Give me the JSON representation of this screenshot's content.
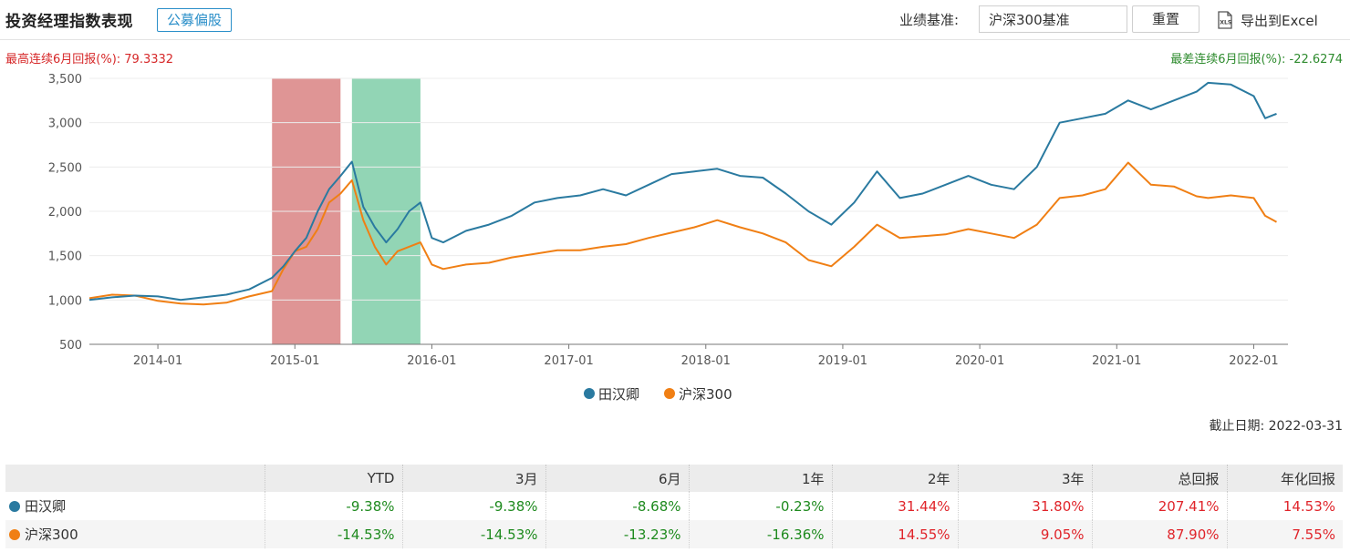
{
  "header": {
    "title": "投资经理指数表现",
    "type_badge": "公募偏股",
    "benchmark_label": "业绩基准:",
    "benchmark_value": "沪深300基准",
    "reset_label": "重置",
    "export_label": "导出到Excel",
    "export_icon": "xls-file-icon"
  },
  "stats": {
    "best_6m": "最高连续6月回报(%):  79.3332",
    "worst_6m": "最差连续6月回报(%):  -22.6274"
  },
  "as_of": "截止日期:  2022-03-31",
  "colors": {
    "manager": "#2a7aa0",
    "benchmark": "#f07f14",
    "best_band": "#d98282",
    "worst_band": "#7fcea8",
    "positive": "#e0242a",
    "negative": "#1e8a1e"
  },
  "chart_data": {
    "type": "line",
    "x_ticks": [
      "2014-01",
      "2015-01",
      "2016-01",
      "2017-01",
      "2018-01",
      "2019-01",
      "2020-01",
      "2021-01",
      "2022-01"
    ],
    "x_range": [
      "2013-07",
      "2022-03-31"
    ],
    "ylim": [
      500,
      3500
    ],
    "y_ticks": [
      "500",
      "1,000",
      "1,500",
      "2,000",
      "2,500",
      "3,000",
      "3,500"
    ],
    "grid": "horizontal",
    "legend_position": "bottom",
    "highlight_bands": [
      {
        "label": "best 6m",
        "start": "2014-11",
        "end": "2015-05"
      },
      {
        "label": "worst 6m",
        "start": "2015-06",
        "end": "2015-12"
      }
    ],
    "series": [
      {
        "name": "田汉卿",
        "points": [
          [
            "2013-07",
            1000
          ],
          [
            "2013-09",
            1030
          ],
          [
            "2013-11",
            1050
          ],
          [
            "2014-01",
            1040
          ],
          [
            "2014-03",
            1000
          ],
          [
            "2014-05",
            1030
          ],
          [
            "2014-07",
            1060
          ],
          [
            "2014-09",
            1120
          ],
          [
            "2014-11",
            1250
          ],
          [
            "2014-12",
            1380
          ],
          [
            "2015-01",
            1550
          ],
          [
            "2015-02",
            1700
          ],
          [
            "2015-03",
            2000
          ],
          [
            "2015-04",
            2250
          ],
          [
            "2015-05",
            2400
          ],
          [
            "2015-06",
            2560
          ],
          [
            "2015-07",
            2050
          ],
          [
            "2015-08",
            1820
          ],
          [
            "2015-09",
            1650
          ],
          [
            "2015-10",
            1800
          ],
          [
            "2015-11",
            2000
          ],
          [
            "2015-12",
            2100
          ],
          [
            "2016-01",
            1700
          ],
          [
            "2016-02",
            1650
          ],
          [
            "2016-04",
            1780
          ],
          [
            "2016-06",
            1850
          ],
          [
            "2016-08",
            1950
          ],
          [
            "2016-10",
            2100
          ],
          [
            "2016-12",
            2150
          ],
          [
            "2017-02",
            2180
          ],
          [
            "2017-04",
            2250
          ],
          [
            "2017-06",
            2180
          ],
          [
            "2017-08",
            2300
          ],
          [
            "2017-10",
            2420
          ],
          [
            "2017-12",
            2450
          ],
          [
            "2018-02",
            2480
          ],
          [
            "2018-04",
            2400
          ],
          [
            "2018-06",
            2380
          ],
          [
            "2018-08",
            2200
          ],
          [
            "2018-10",
            2000
          ],
          [
            "2018-12",
            1850
          ],
          [
            "2019-02",
            2100
          ],
          [
            "2019-04",
            2450
          ],
          [
            "2019-06",
            2150
          ],
          [
            "2019-08",
            2200
          ],
          [
            "2019-10",
            2300
          ],
          [
            "2019-12",
            2400
          ],
          [
            "2020-02",
            2300
          ],
          [
            "2020-04",
            2250
          ],
          [
            "2020-06",
            2500
          ],
          [
            "2020-08",
            3000
          ],
          [
            "2020-10",
            3050
          ],
          [
            "2020-12",
            3100
          ],
          [
            "2021-02",
            3250
          ],
          [
            "2021-04",
            3150
          ],
          [
            "2021-06",
            3250
          ],
          [
            "2021-08",
            3350
          ],
          [
            "2021-09",
            3450
          ],
          [
            "2021-11",
            3430
          ],
          [
            "2022-01",
            3300
          ],
          [
            "2022-02",
            3050
          ],
          [
            "2022-03",
            3100
          ]
        ]
      },
      {
        "name": "沪深300",
        "points": [
          [
            "2013-07",
            1020
          ],
          [
            "2013-09",
            1060
          ],
          [
            "2013-11",
            1050
          ],
          [
            "2014-01",
            990
          ],
          [
            "2014-03",
            960
          ],
          [
            "2014-05",
            950
          ],
          [
            "2014-07",
            970
          ],
          [
            "2014-09",
            1040
          ],
          [
            "2014-11",
            1100
          ],
          [
            "2014-12",
            1350
          ],
          [
            "2015-01",
            1550
          ],
          [
            "2015-02",
            1600
          ],
          [
            "2015-03",
            1800
          ],
          [
            "2015-04",
            2100
          ],
          [
            "2015-05",
            2200
          ],
          [
            "2015-06",
            2350
          ],
          [
            "2015-07",
            1900
          ],
          [
            "2015-08",
            1600
          ],
          [
            "2015-09",
            1400
          ],
          [
            "2015-10",
            1550
          ],
          [
            "2015-11",
            1600
          ],
          [
            "2015-12",
            1650
          ],
          [
            "2016-01",
            1400
          ],
          [
            "2016-02",
            1350
          ],
          [
            "2016-04",
            1400
          ],
          [
            "2016-06",
            1420
          ],
          [
            "2016-08",
            1480
          ],
          [
            "2016-10",
            1520
          ],
          [
            "2016-12",
            1560
          ],
          [
            "2017-02",
            1560
          ],
          [
            "2017-04",
            1600
          ],
          [
            "2017-06",
            1630
          ],
          [
            "2017-08",
            1700
          ],
          [
            "2017-10",
            1760
          ],
          [
            "2017-12",
            1820
          ],
          [
            "2018-02",
            1900
          ],
          [
            "2018-04",
            1820
          ],
          [
            "2018-06",
            1750
          ],
          [
            "2018-08",
            1650
          ],
          [
            "2018-10",
            1450
          ],
          [
            "2018-12",
            1380
          ],
          [
            "2019-02",
            1600
          ],
          [
            "2019-04",
            1850
          ],
          [
            "2019-06",
            1700
          ],
          [
            "2019-08",
            1720
          ],
          [
            "2019-10",
            1740
          ],
          [
            "2019-12",
            1800
          ],
          [
            "2020-02",
            1750
          ],
          [
            "2020-04",
            1700
          ],
          [
            "2020-06",
            1850
          ],
          [
            "2020-08",
            2150
          ],
          [
            "2020-10",
            2180
          ],
          [
            "2020-12",
            2250
          ],
          [
            "2021-02",
            2550
          ],
          [
            "2021-04",
            2300
          ],
          [
            "2021-06",
            2280
          ],
          [
            "2021-08",
            2170
          ],
          [
            "2021-09",
            2150
          ],
          [
            "2021-11",
            2180
          ],
          [
            "2022-01",
            2150
          ],
          [
            "2022-02",
            1950
          ],
          [
            "2022-03",
            1880
          ]
        ]
      }
    ]
  },
  "table": {
    "headers": [
      "",
      "YTD",
      "3月",
      "6月",
      "1年",
      "2年",
      "3年",
      "总回报",
      "年化回报"
    ],
    "rows": [
      {
        "name": "田汉卿",
        "values": [
          "-9.38%",
          "-9.38%",
          "-8.68%",
          "-0.23%",
          "31.44%",
          "31.80%",
          "207.41%",
          "14.53%"
        ]
      },
      {
        "name": "沪深300",
        "values": [
          "-14.53%",
          "-14.53%",
          "-13.23%",
          "-16.36%",
          "14.55%",
          "9.05%",
          "87.90%",
          "7.55%"
        ]
      }
    ]
  }
}
